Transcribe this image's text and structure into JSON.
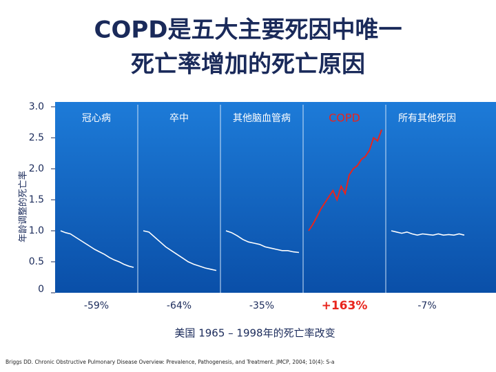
{
  "chart_data": {
    "type": "line",
    "title": "COPD是五大主要死因中唯一",
    "title_line2": "死亡率增加的死亡原因",
    "y_label": "年龄调整的死亡率",
    "x_label": "美国 1965 – 1998年的死亡率改变",
    "source": "Briggs DD. Chronic Obstructive Pulmonary Disease Overview: Prevalence, Pathogenesis, and Treatment. JMCP, 2004; 10(4): S-a",
    "ylim": [
      0,
      3
    ],
    "yticks": [
      0,
      {
        "value": 0.5,
        "label": "0.5"
      },
      {
        "value": 1,
        "label": "1.0"
      },
      {
        "value": 1.5,
        "label": "1.5"
      },
      {
        "value": 2,
        "label": "2.0"
      },
      {
        "value": 2.5,
        "label": "2.5"
      },
      {
        "value": 3,
        "label": "3.0"
      }
    ],
    "series": [
      {
        "name": "冠心病",
        "color": "#ffffff",
        "change": "-59%",
        "values": [
          1.0,
          0.97,
          0.95,
          0.9,
          0.85,
          0.8,
          0.75,
          0.7,
          0.66,
          0.62,
          0.57,
          0.53,
          0.5,
          0.46,
          0.43,
          0.41
        ]
      },
      {
        "name": "卒中",
        "color": "#ffffff",
        "change": "-64%",
        "values": [
          1.0,
          0.98,
          0.9,
          0.82,
          0.74,
          0.68,
          0.62,
          0.56,
          0.5,
          0.46,
          0.43,
          0.4,
          0.38,
          0.36
        ]
      },
      {
        "name": "其他脑血管病",
        "color": "#ffffff",
        "change": "-35%",
        "values": [
          1.0,
          0.97,
          0.92,
          0.86,
          0.82,
          0.8,
          0.78,
          0.74,
          0.72,
          0.7,
          0.68,
          0.68,
          0.66,
          0.65
        ]
      },
      {
        "name": "COPD",
        "color": "#e8241c",
        "change": "+163%",
        "values": [
          1.0,
          1.1,
          1.22,
          1.35,
          1.45,
          1.55,
          1.65,
          1.5,
          1.72,
          1.6,
          1.9,
          2.0,
          2.05,
          2.15,
          2.2,
          2.3,
          2.5,
          2.45,
          2.63
        ]
      },
      {
        "name": "所有其他死因",
        "color": "#ffffff",
        "change": "-7%",
        "values": [
          1.0,
          0.98,
          0.96,
          0.98,
          0.95,
          0.93,
          0.95,
          0.94,
          0.93,
          0.95,
          0.93,
          0.94,
          0.93,
          0.95,
          0.93
        ]
      }
    ]
  }
}
